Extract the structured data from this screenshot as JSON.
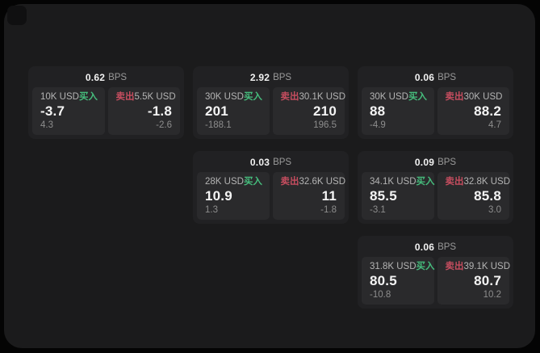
{
  "labels": {
    "bps_suffix": "BPS",
    "buy": "买入",
    "sell": "卖出"
  },
  "colors": {
    "buy_green": "#46bd7d",
    "sell_red": "#c64d5f",
    "window_bg": "#1b1b1c",
    "card_bg": "#212123",
    "panel_bg": "#2a2a2c"
  },
  "cards": [
    {
      "bps": "0.62",
      "buy": {
        "size": "10K USD",
        "price": "-3.7",
        "change": "4.3"
      },
      "sell": {
        "size": "5.5K USD",
        "price": "-1.8",
        "change": "-2.6"
      }
    },
    {
      "bps": "2.92",
      "buy": {
        "size": "30K USD",
        "price": "201",
        "change": "-188.1"
      },
      "sell": {
        "size": "30.1K USD",
        "price": "210",
        "change": "196.5"
      }
    },
    {
      "bps": "0.06",
      "buy": {
        "size": "30K USD",
        "price": "88",
        "change": "-4.9"
      },
      "sell": {
        "size": "30K USD",
        "price": "88.2",
        "change": "4.7"
      }
    },
    {
      "bps": "0.03",
      "buy": {
        "size": "28K USD",
        "price": "10.9",
        "change": "1.3"
      },
      "sell": {
        "size": "32.6K USD",
        "price": "11",
        "change": "-1.8"
      }
    },
    {
      "bps": "0.09",
      "buy": {
        "size": "34.1K USD",
        "price": "85.5",
        "change": "-3.1"
      },
      "sell": {
        "size": "32.8K USD",
        "price": "85.8",
        "change": "3.0"
      }
    },
    {
      "bps": "0.06",
      "buy": {
        "size": "31.8K USD",
        "price": "80.5",
        "change": "-10.8"
      },
      "sell": {
        "size": "39.1K USD",
        "price": "80.7",
        "change": "10.2"
      }
    }
  ]
}
